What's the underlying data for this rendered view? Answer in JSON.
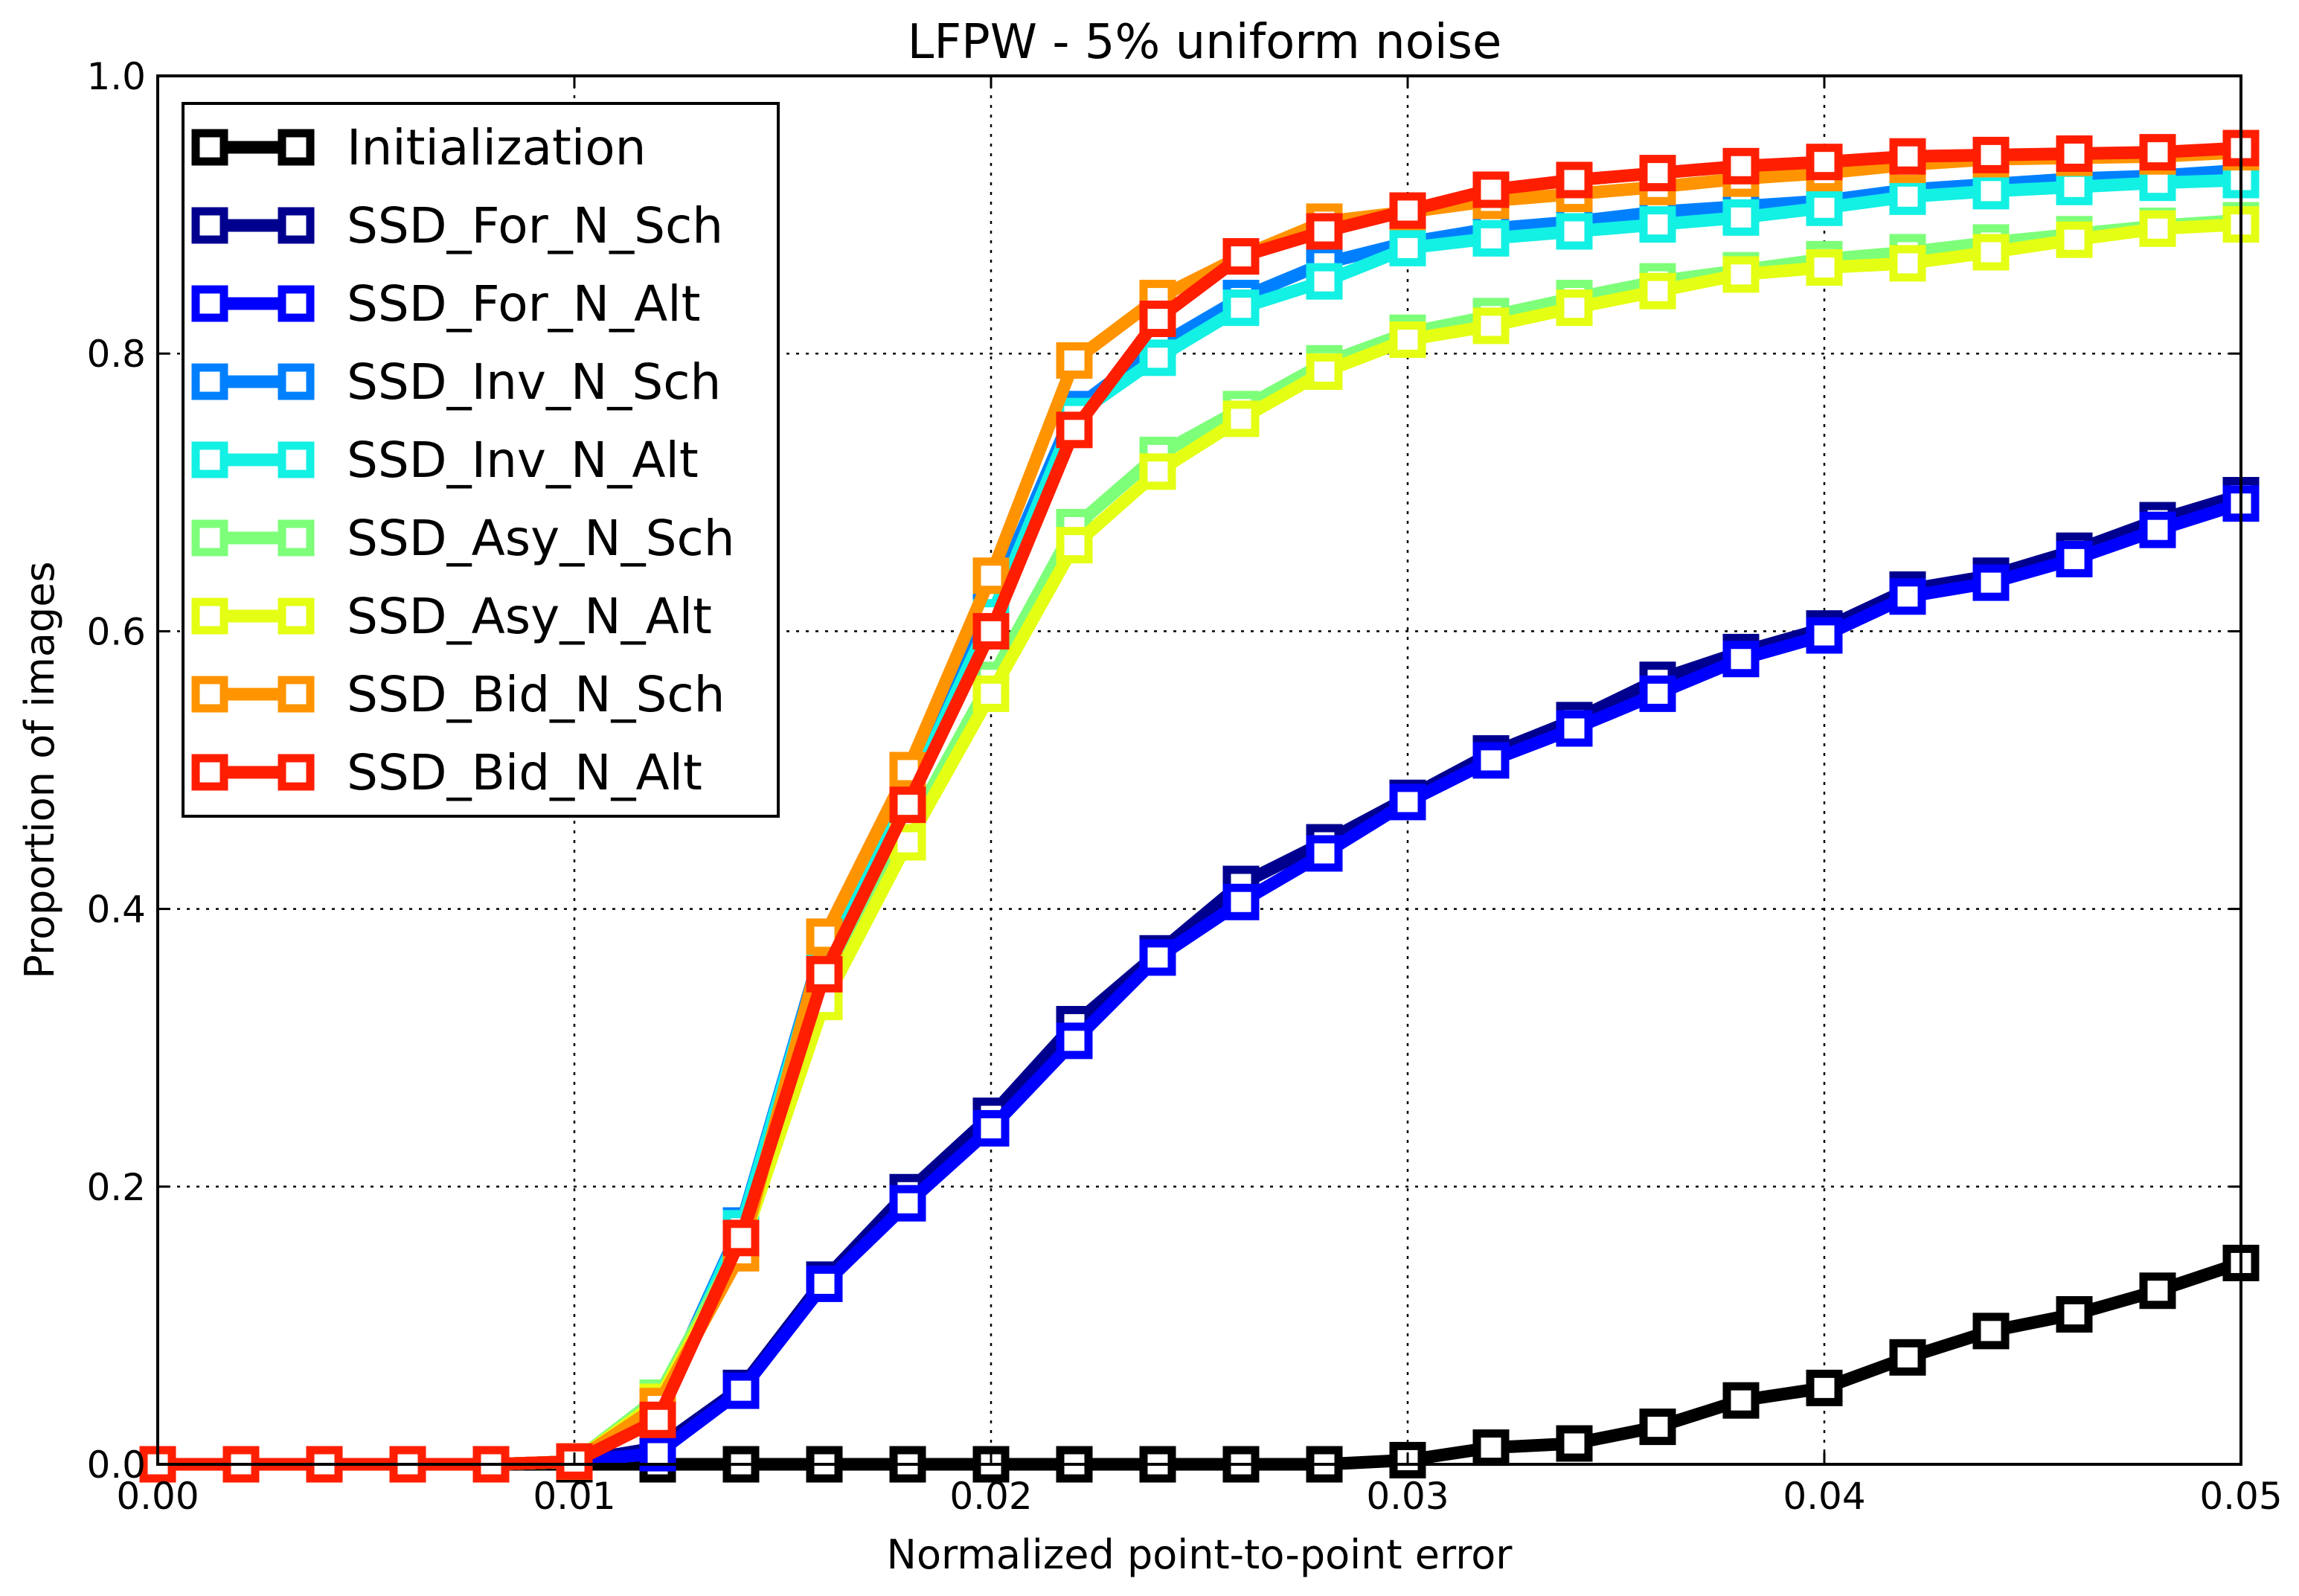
{
  "chart_data": {
    "type": "line",
    "title": "LFPW - 5% uniform noise",
    "xlabel": "Normalized point-to-point error",
    "ylabel": "Proportion of images",
    "xlim": [
      0,
      0.05
    ],
    "ylim": [
      0,
      1.0
    ],
    "grid": true,
    "legend_position": "top-left",
    "x_ticks": [
      "0.00",
      "0.01",
      "0.02",
      "0.03",
      "0.04",
      "0.05"
    ],
    "y_ticks": [
      "0.0",
      "0.2",
      "0.4",
      "0.6",
      "0.8",
      "1.0"
    ],
    "x": [
      0.0,
      0.002,
      0.004,
      0.006,
      0.008,
      0.01,
      0.012,
      0.014,
      0.016,
      0.018,
      0.02,
      0.022,
      0.024,
      0.026,
      0.028,
      0.03,
      0.032,
      0.034,
      0.036,
      0.038,
      0.04,
      0.042,
      0.044,
      0.046,
      0.048,
      0.05
    ],
    "series": [
      {
        "name": "Initialization",
        "color": "#000000",
        "values": [
          0,
          0,
          0,
          0,
          0,
          0,
          0,
          0,
          0,
          0,
          0,
          0,
          0,
          0,
          0,
          0.003,
          0.012,
          0.015,
          0.027,
          0.046,
          0.055,
          0.077,
          0.096,
          0.108,
          0.125,
          0.145
        ]
      },
      {
        "name": "SSD_For_N_Sch",
        "color": "#00008f",
        "values": [
          0,
          0,
          0,
          0,
          0,
          0.002,
          0.012,
          0.055,
          0.133,
          0.196,
          0.251,
          0.317,
          0.368,
          0.418,
          0.448,
          0.48,
          0.512,
          0.536,
          0.565,
          0.585,
          0.602,
          0.63,
          0.64,
          0.658,
          0.68,
          0.698
        ]
      },
      {
        "name": "SSD_For_N_Alt",
        "color": "#0000ff",
        "values": [
          0,
          0,
          0,
          0,
          0,
          0.002,
          0.008,
          0.053,
          0.13,
          0.188,
          0.242,
          0.305,
          0.365,
          0.405,
          0.44,
          0.477,
          0.507,
          0.53,
          0.555,
          0.58,
          0.597,
          0.625,
          0.635,
          0.652,
          0.673,
          0.692
        ]
      },
      {
        "name": "SSD_Inv_N_Sch",
        "color": "#0080ff",
        "values": [
          0,
          0,
          0,
          0,
          0,
          0.002,
          0.04,
          0.172,
          0.378,
          0.488,
          0.62,
          0.76,
          0.805,
          0.84,
          0.865,
          0.88,
          0.89,
          0.895,
          0.902,
          0.906,
          0.91,
          0.918,
          0.922,
          0.926,
          0.928,
          0.932
        ]
      },
      {
        "name": "SSD_Inv_N_Alt",
        "color": "#13f0e4",
        "values": [
          0,
          0,
          0,
          0,
          0,
          0.002,
          0.038,
          0.17,
          0.375,
          0.48,
          0.61,
          0.755,
          0.797,
          0.833,
          0.852,
          0.876,
          0.883,
          0.888,
          0.893,
          0.898,
          0.905,
          0.913,
          0.917,
          0.92,
          0.923,
          0.925
        ]
      },
      {
        "name": "SSD_Asy_N_Sch",
        "color": "#7dff7a",
        "values": [
          0,
          0,
          0,
          0,
          0,
          0.002,
          0.048,
          0.16,
          0.34,
          0.455,
          0.565,
          0.675,
          0.727,
          0.76,
          0.793,
          0.815,
          0.827,
          0.84,
          0.852,
          0.86,
          0.868,
          0.873,
          0.88,
          0.886,
          0.892,
          0.896
        ]
      },
      {
        "name": "SSD_Asy_N_Alt",
        "color": "#e4ff13",
        "values": [
          0,
          0,
          0,
          0,
          0,
          0.002,
          0.045,
          0.155,
          0.333,
          0.448,
          0.555,
          0.662,
          0.715,
          0.753,
          0.787,
          0.81,
          0.82,
          0.833,
          0.845,
          0.857,
          0.862,
          0.865,
          0.873,
          0.882,
          0.89,
          0.893
        ]
      },
      {
        "name": "SSD_Bid_N_Sch",
        "color": "#ff9400",
        "values": [
          0,
          0,
          0,
          0,
          0,
          0.002,
          0.042,
          0.152,
          0.38,
          0.5,
          0.64,
          0.795,
          0.84,
          0.87,
          0.895,
          0.902,
          0.91,
          0.915,
          0.92,
          0.926,
          0.93,
          0.936,
          0.94,
          0.941,
          0.942,
          0.945
        ]
      },
      {
        "name": "SSD_Bid_N_Alt",
        "color": "#ff1e00",
        "values": [
          0,
          0,
          0,
          0,
          0,
          0.002,
          0.032,
          0.163,
          0.353,
          0.475,
          0.6,
          0.745,
          0.825,
          0.87,
          0.888,
          0.903,
          0.918,
          0.925,
          0.93,
          0.935,
          0.938,
          0.942,
          0.943,
          0.944,
          0.945,
          0.948
        ]
      }
    ]
  }
}
